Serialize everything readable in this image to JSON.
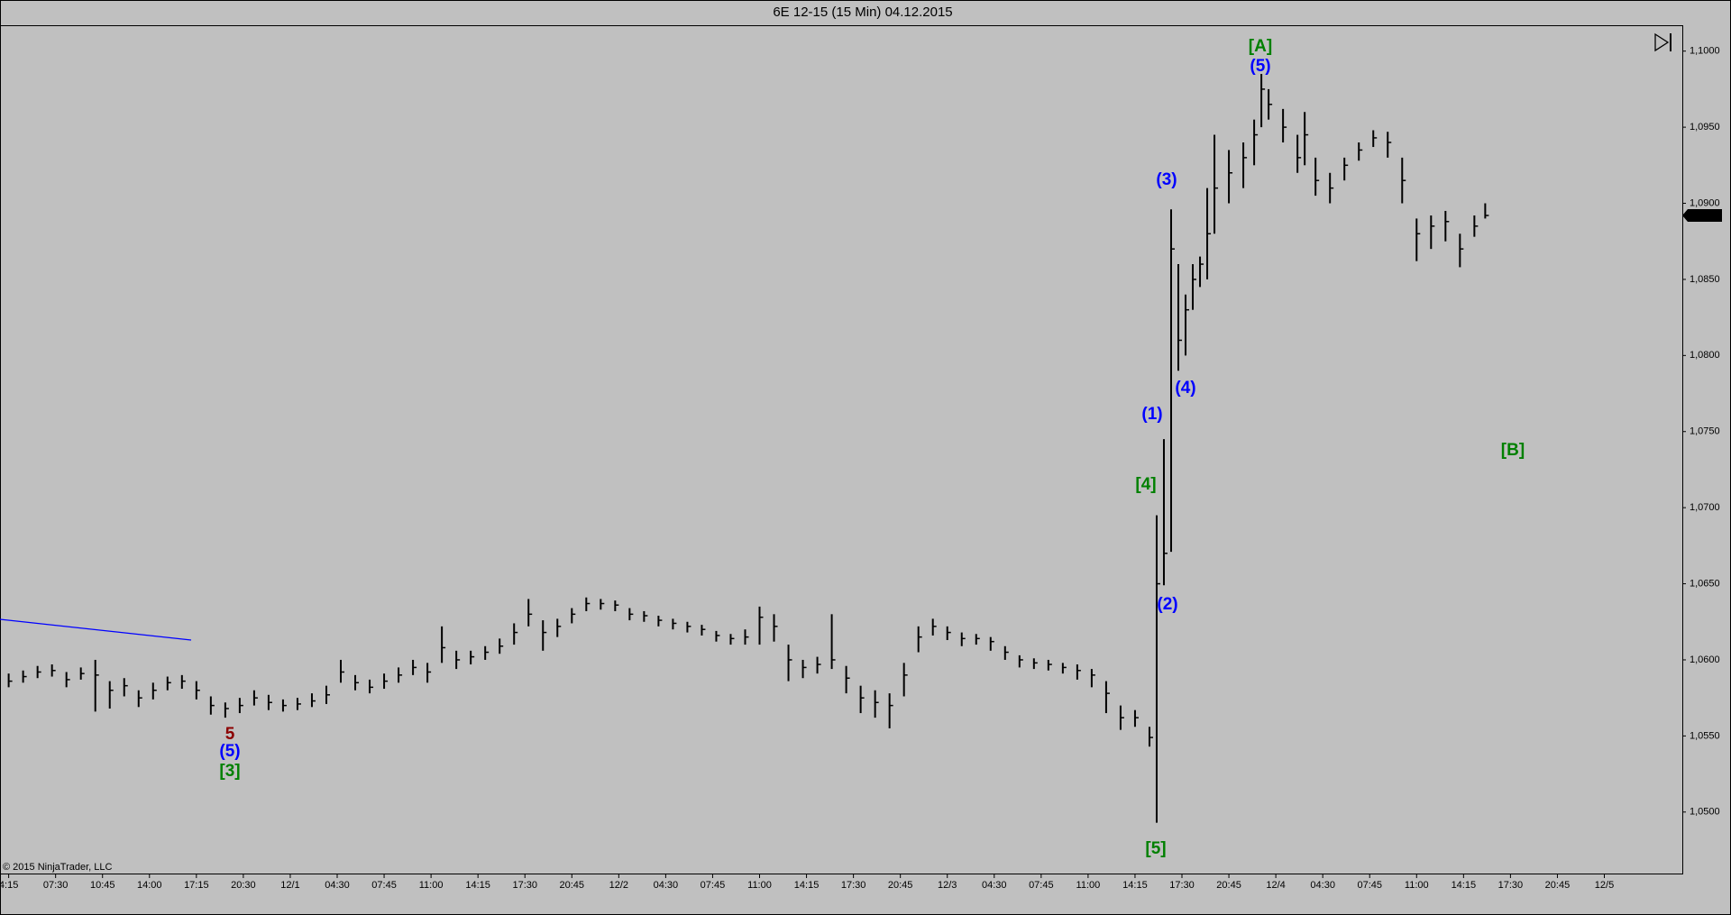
{
  "chart_data": {
    "type": "ohlc",
    "title": "6E 12-15 (15 Min)  04.12.2015",
    "copyright": "© 2015 NinjaTrader, LLC",
    "bar_color": "#000000",
    "background": "#c0c0c0",
    "x": [
      0,
      4,
      8,
      12,
      16,
      20,
      24,
      28,
      32,
      36,
      40,
      44,
      48,
      52,
      56,
      60,
      64,
      68,
      72,
      76,
      80,
      84,
      88,
      92,
      96,
      100,
      104,
      108,
      112,
      116,
      120,
      124,
      128,
      132,
      136,
      140,
      144,
      148,
      152,
      156,
      160,
      164,
      168,
      172,
      176,
      180,
      184,
      188,
      192,
      196,
      200,
      204,
      208,
      212,
      216,
      220,
      224,
      228,
      232,
      236,
      240,
      244,
      248,
      252,
      256,
      260,
      264,
      268,
      272,
      276,
      280,
      284,
      288,
      292,
      296,
      300,
      304,
      308,
      312,
      316,
      318,
      320,
      322,
      324,
      326,
      328,
      330,
      332,
      334,
      338,
      342,
      345,
      347,
      349,
      353,
      357,
      359,
      362,
      366,
      370,
      374,
      378,
      382,
      386,
      390,
      394,
      398,
      402,
      406,
      409
    ],
    "high": [
      1.0591,
      1.0593,
      1.0596,
      1.0597,
      1.0592,
      1.0595,
      1.06,
      1.0586,
      1.0588,
      1.058,
      1.0585,
      1.0589,
      1.059,
      1.0586,
      1.0576,
      1.0572,
      1.0575,
      1.058,
      1.0577,
      1.0574,
      1.0575,
      1.0578,
      1.0583,
      1.06,
      1.059,
      1.0587,
      1.0591,
      1.0595,
      1.06,
      1.0598,
      1.0622,
      1.0606,
      1.0606,
      1.0609,
      1.0614,
      1.0624,
      1.064,
      1.0626,
      1.0627,
      1.0634,
      1.0641,
      1.064,
      1.0639,
      1.0634,
      1.0632,
      1.0629,
      1.0627,
      1.0625,
      1.0623,
      1.0619,
      1.0617,
      1.062,
      1.0635,
      1.063,
      1.061,
      1.06,
      1.0602,
      1.063,
      1.0596,
      1.0583,
      1.058,
      1.0578,
      1.0598,
      1.0622,
      1.0627,
      1.0622,
      1.0618,
      1.0617,
      1.0615,
      1.0609,
      1.0603,
      1.0601,
      1.06,
      1.0598,
      1.0597,
      1.0594,
      1.0586,
      1.057,
      1.0567,
      1.0556,
      1.0695,
      1.0745,
      1.0896,
      1.086,
      1.084,
      1.086,
      1.0865,
      1.091,
      1.0945,
      1.0935,
      1.094,
      1.0955,
      1.0985,
      1.0975,
      1.0962,
      1.0945,
      1.096,
      1.093,
      1.092,
      1.093,
      1.094,
      1.0948,
      1.0947,
      1.093,
      1.089,
      1.0892,
      1.0895,
      1.088,
      1.0892,
      1.09
    ],
    "low": [
      1.0582,
      1.0585,
      1.0588,
      1.0589,
      1.0582,
      1.0587,
      1.0566,
      1.0568,
      1.0576,
      1.0569,
      1.0574,
      1.058,
      1.0581,
      1.0574,
      1.0564,
      1.0562,
      1.0565,
      1.057,
      1.0567,
      1.0566,
      1.0567,
      1.0569,
      1.0571,
      1.0585,
      1.058,
      1.0578,
      1.0581,
      1.0585,
      1.059,
      1.0585,
      1.0598,
      1.0594,
      1.0597,
      1.06,
      1.0604,
      1.061,
      1.0622,
      1.0606,
      1.0615,
      1.0624,
      1.0632,
      1.0633,
      1.0632,
      1.0626,
      1.0625,
      1.0622,
      1.062,
      1.0618,
      1.0616,
      1.0612,
      1.061,
      1.061,
      1.061,
      1.0612,
      1.0586,
      1.0588,
      1.0591,
      1.0594,
      1.0578,
      1.0565,
      1.0562,
      1.0555,
      1.0576,
      1.0605,
      1.0616,
      1.0613,
      1.0609,
      1.061,
      1.0606,
      1.06,
      1.0595,
      1.0594,
      1.0593,
      1.0591,
      1.0587,
      1.0582,
      1.0565,
      1.0554,
      1.0556,
      1.0543,
      1.0493,
      1.0649,
      1.0671,
      1.079,
      1.08,
      1.083,
      1.0845,
      1.085,
      1.088,
      1.09,
      1.091,
      1.0925,
      1.095,
      1.0955,
      1.094,
      1.092,
      1.0925,
      1.0905,
      1.09,
      1.0915,
      1.0928,
      1.0937,
      1.093,
      1.09,
      1.0862,
      1.087,
      1.0875,
      1.0858,
      1.0878,
      1.089
    ],
    "close": [
      1.0586,
      1.0589,
      1.0592,
      1.0593,
      1.0587,
      1.0591,
      1.059,
      1.058,
      1.0583,
      1.0575,
      1.058,
      1.0585,
      1.0586,
      1.058,
      1.057,
      1.0568,
      1.057,
      1.0575,
      1.0572,
      1.057,
      1.0571,
      1.0573,
      1.0577,
      1.0592,
      1.0585,
      1.0582,
      1.0586,
      1.059,
      1.0595,
      1.0592,
      1.0608,
      1.06,
      1.0602,
      1.0605,
      1.0609,
      1.0618,
      1.063,
      1.0618,
      1.0622,
      1.063,
      1.0637,
      1.0637,
      1.0636,
      1.063,
      1.0629,
      1.0626,
      1.0624,
      1.0622,
      1.062,
      1.0616,
      1.0614,
      1.0615,
      1.0628,
      1.0622,
      1.06,
      1.0595,
      1.0597,
      1.06,
      1.0588,
      1.0575,
      1.0572,
      1.057,
      1.059,
      1.0615,
      1.0622,
      1.0618,
      1.0614,
      1.0614,
      1.0612,
      1.0605,
      1.06,
      1.0598,
      1.0597,
      1.0595,
      1.0593,
      1.059,
      1.0578,
      1.0562,
      1.0562,
      1.0549,
      1.065,
      1.067,
      1.087,
      1.081,
      1.083,
      1.085,
      1.086,
      1.088,
      1.091,
      1.092,
      1.093,
      1.0945,
      1.0975,
      1.0965,
      1.095,
      1.093,
      1.0945,
      1.0915,
      1.091,
      1.0925,
      1.0935,
      1.0943,
      1.094,
      1.0915,
      1.088,
      1.0885,
      1.0888,
      1.087,
      1.0885,
      1.0892
    ],
    "xlim": [
      -2.4,
      463.6
    ],
    "ylim": [
      1.0459,
      1.1017
    ],
    "xticks": [
      {
        "value": 0,
        "label": "4:15"
      },
      {
        "value": 13,
        "label": "07:30"
      },
      {
        "value": 26,
        "label": "10:45"
      },
      {
        "value": 39,
        "label": "14:00"
      },
      {
        "value": 52,
        "label": "17:15"
      },
      {
        "value": 65,
        "label": "20:30"
      },
      {
        "value": 78,
        "label": "12/1"
      },
      {
        "value": 91,
        "label": "04:30"
      },
      {
        "value": 104,
        "label": "07:45"
      },
      {
        "value": 117,
        "label": "11:00"
      },
      {
        "value": 130,
        "label": "14:15"
      },
      {
        "value": 143,
        "label": "17:30"
      },
      {
        "value": 156,
        "label": "20:45"
      },
      {
        "value": 169,
        "label": "12/2"
      },
      {
        "value": 182,
        "label": "04:30"
      },
      {
        "value": 195,
        "label": "07:45"
      },
      {
        "value": 208,
        "label": "11:00"
      },
      {
        "value": 221,
        "label": "14:15"
      },
      {
        "value": 234,
        "label": "17:30"
      },
      {
        "value": 247,
        "label": "20:45"
      },
      {
        "value": 260,
        "label": "12/3"
      },
      {
        "value": 273,
        "label": "04:30"
      },
      {
        "value": 286,
        "label": "07:45"
      },
      {
        "value": 299,
        "label": "11:00"
      },
      {
        "value": 312,
        "label": "14:15"
      },
      {
        "value": 325,
        "label": "17:30"
      },
      {
        "value": 338,
        "label": "20:45"
      },
      {
        "value": 351,
        "label": "12/4"
      },
      {
        "value": 364,
        "label": "04:30"
      },
      {
        "value": 377,
        "label": "07:45"
      },
      {
        "value": 390,
        "label": "11:00"
      },
      {
        "value": 403,
        "label": "14:15"
      },
      {
        "value": 416,
        "label": "17:30"
      },
      {
        "value": 429,
        "label": "20:45"
      },
      {
        "value": 442,
        "label": "12/5"
      }
    ],
    "yticks": [
      {
        "value": 1.05,
        "label": "1,0500"
      },
      {
        "value": 1.055,
        "label": "1,0550"
      },
      {
        "value": 1.06,
        "label": "1,0600"
      },
      {
        "value": 1.065,
        "label": "1,0650"
      },
      {
        "value": 1.07,
        "label": "1,0700"
      },
      {
        "value": 1.075,
        "label": "1,0750"
      },
      {
        "value": 1.08,
        "label": "1,0800"
      },
      {
        "value": 1.085,
        "label": "1,0850"
      },
      {
        "value": 1.09,
        "label": "1,0900"
      },
      {
        "value": 1.095,
        "label": "1,0950"
      },
      {
        "value": 1.1,
        "label": "1,1000"
      }
    ],
    "last_price": {
      "value": 1.0892,
      "label": "1,0892"
    },
    "annotations": [
      {
        "text": "5",
        "color": "#8b0000"
      },
      {
        "text": "(5)",
        "color": "#0000ff"
      },
      {
        "text": "[3]",
        "color": "#008000"
      },
      {
        "text": "[5]",
        "color": "#008000"
      },
      {
        "text": "[4]",
        "color": "#008000"
      },
      {
        "text": "(1)",
        "color": "#0000ff"
      },
      {
        "text": "(2)",
        "color": "#0000ff"
      },
      {
        "text": "(3)",
        "color": "#0000ff"
      },
      {
        "text": "(4)",
        "color": "#0000ff"
      },
      {
        "text": "(5)",
        "color": "#0000ff"
      },
      {
        "text": "[A]",
        "color": "#008000"
      },
      {
        "text": "[B]",
        "color": "#008000"
      }
    ]
  }
}
